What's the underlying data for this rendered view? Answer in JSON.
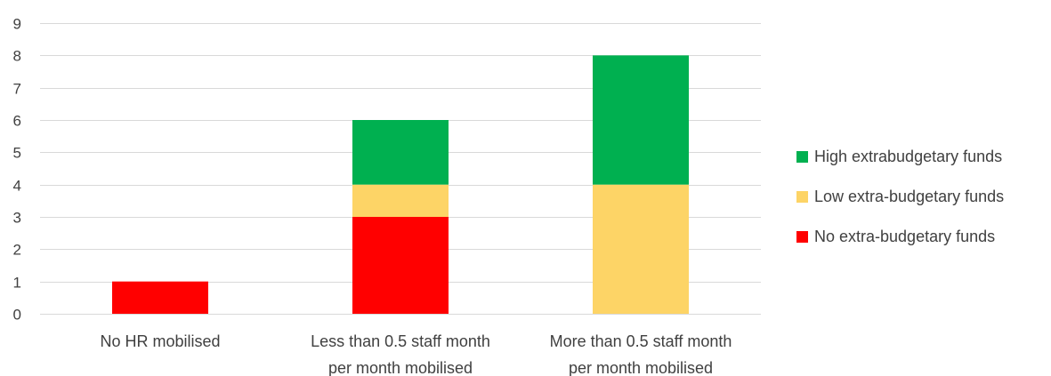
{
  "chart_data": {
    "type": "bar",
    "stacked": true,
    "categories": [
      [
        "No HR mobilised"
      ],
      [
        "Less than 0.5 staff month",
        "per month mobilised"
      ],
      [
        "More than 0.5 staff month",
        "per month mobilised"
      ]
    ],
    "series": [
      {
        "name": "No extra-budgetary funds",
        "color": "#ff0000",
        "values": [
          1,
          3,
          0
        ]
      },
      {
        "name": "Low extra-budgetary funds",
        "color": "#fdd466",
        "values": [
          0,
          1,
          4
        ]
      },
      {
        "name": "High extrabudgetary funds",
        "color": "#00b050",
        "values": [
          0,
          2,
          4
        ]
      }
    ],
    "legend_order": [
      "High extrabudgetary funds",
      "Low extra-budgetary funds",
      "No extra-budgetary funds"
    ],
    "legend_position": "right",
    "ylim": [
      0,
      9
    ],
    "yticks": [
      0,
      1,
      2,
      3,
      4,
      5,
      6,
      7,
      8,
      9
    ],
    "grid": true,
    "title": "",
    "xlabel": "",
    "ylabel": ""
  }
}
